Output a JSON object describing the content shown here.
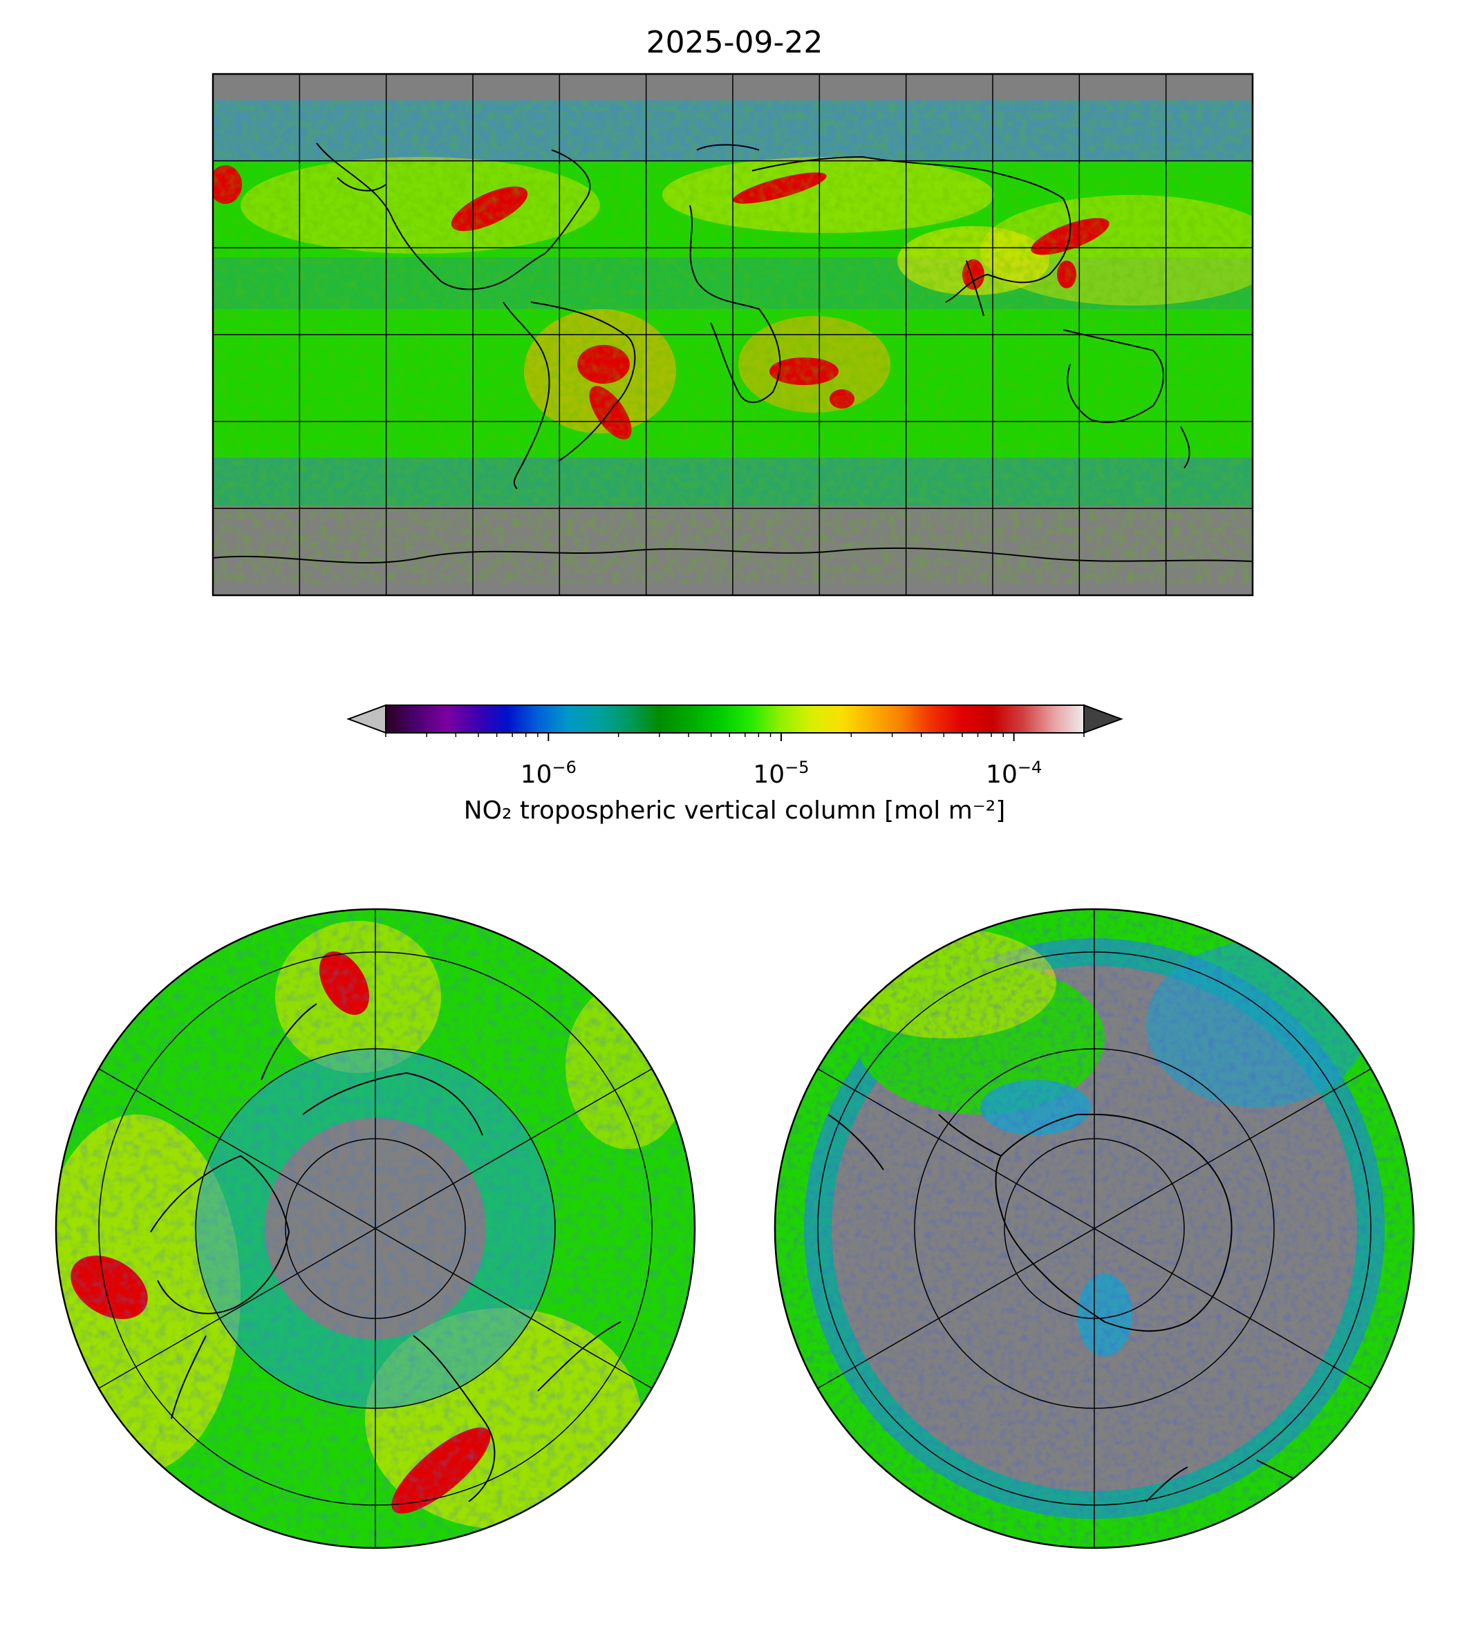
{
  "figure": {
    "title": "2025-09-22"
  },
  "colorbar": {
    "label": "NO₂ tropospheric vertical column [mol m⁻²]",
    "scale": "log",
    "vmin": 2e-07,
    "vmax": 0.0002,
    "extend": "both",
    "ticks": [
      {
        "value": 1e-06,
        "base": "10",
        "exp": "−6"
      },
      {
        "value": 1e-05,
        "base": "10",
        "exp": "−5"
      },
      {
        "value": 0.0001,
        "base": "10",
        "exp": "−4"
      }
    ],
    "colors": [
      "#2b0022",
      "#4a0070",
      "#7b00a0",
      "#3f00b0",
      "#0010cc",
      "#0060d8",
      "#0098c8",
      "#00a0a0",
      "#009a60",
      "#008c00",
      "#00a800",
      "#00cc00",
      "#22ea00",
      "#90f000",
      "#d8f000",
      "#f8e000",
      "#fcb000",
      "#f88000",
      "#f03000",
      "#e00000",
      "#c80000",
      "#d04040",
      "#e8a0a0",
      "#ececec"
    ],
    "under_color": "#c0c0c0",
    "over_color": "#404040"
  },
  "maps": {
    "global": {
      "projection": "PlateCarree",
      "lon_range": [
        -180,
        180
      ],
      "lat_range": [
        -90,
        90
      ],
      "gridline_spacing_deg": 30
    },
    "north_polar": {
      "projection": "NorthPolarStereo",
      "hemisphere": "north"
    },
    "south_polar": {
      "projection": "SouthPolarStereo",
      "hemisphere": "south"
    },
    "no_data_color": "#808080"
  }
}
